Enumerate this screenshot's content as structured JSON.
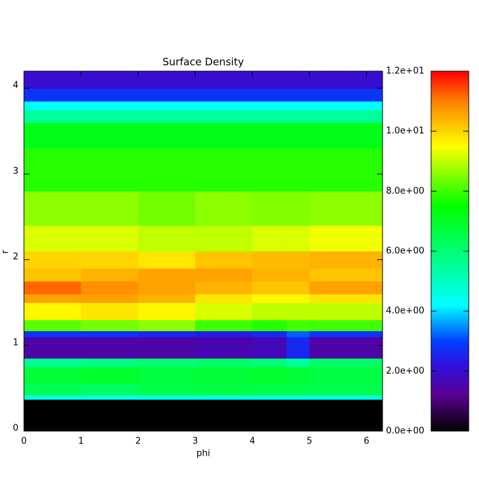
{
  "chart_data": {
    "type": "heatmap",
    "title": "Surface Density",
    "x_label": "phi",
    "y_label": "r",
    "x": [
      0,
      1,
      2,
      3,
      4,
      4.6,
      5,
      6.28
    ],
    "y": [
      0,
      0.37,
      0.42,
      0.55,
      0.75,
      0.85,
      1.1,
      1.17,
      1.3,
      1.5,
      1.6,
      1.75,
      1.9,
      2.1,
      2.4,
      2.8,
      3.3,
      3.6,
      3.75,
      3.85,
      4.0,
      4.2
    ],
    "z": [
      [
        0,
        0,
        0,
        0,
        0,
        0,
        0
      ],
      [
        4.5,
        4.5,
        4.5,
        4.5,
        4.5,
        4.5,
        4.5
      ],
      [
        6.4,
        6.2,
        6.5,
        6.6,
        6.5,
        6.5,
        6.5
      ],
      [
        6.8,
        6.9,
        6.7,
        6.8,
        6.9,
        6.8,
        6.6
      ],
      [
        5.6,
        5.8,
        6.0,
        6.2,
        6.0,
        5.5,
        6.2
      ],
      [
        1.5,
        1.5,
        1.5,
        1.6,
        1.7,
        2.6,
        1.5
      ],
      [
        2.8,
        2.8,
        2.6,
        2.4,
        2.6,
        3.2,
        2.8
      ],
      [
        8.2,
        8.4,
        8.6,
        8.0,
        7.8,
        8.0,
        8.0
      ],
      [
        9.6,
        9.8,
        9.6,
        9.2,
        9.0,
        9.0,
        9.0
      ],
      [
        10.6,
        10.6,
        10.4,
        9.8,
        9.6,
        9.6,
        9.8
      ],
      [
        11.2,
        10.8,
        10.6,
        10.4,
        10.2,
        10.2,
        10.6
      ],
      [
        10.2,
        10.4,
        10.6,
        10.6,
        10.4,
        10.4,
        10.2
      ],
      [
        10.0,
        10.0,
        9.8,
        10.2,
        10.3,
        10.3,
        10.4
      ],
      [
        9.2,
        9.2,
        9.0,
        9.0,
        9.2,
        9.2,
        9.4
      ],
      [
        8.6,
        8.6,
        8.4,
        8.6,
        8.5,
        8.5,
        8.6
      ],
      [
        7.8,
        7.8,
        7.8,
        7.8,
        7.8,
        7.8,
        7.8
      ],
      [
        7.2,
        7.2,
        7.2,
        7.2,
        7.2,
        7.2,
        7.2
      ],
      [
        5.5,
        5.5,
        5.5,
        5.5,
        5.5,
        5.5,
        5.5
      ],
      [
        4.2,
        4.2,
        4.2,
        4.2,
        4.2,
        4.2,
        4.2
      ],
      [
        2.8,
        2.8,
        2.8,
        2.8,
        2.8,
        2.8,
        2.8
      ],
      [
        2.0,
        2.0,
        2.0,
        2.0,
        2.0,
        2.0,
        2.0
      ]
    ],
    "xlim": [
      0,
      6.28
    ],
    "xticks": [
      0,
      1,
      2,
      3,
      4,
      5,
      6
    ],
    "ylim": [
      0,
      4.2
    ],
    "yticks": [
      0,
      1,
      2,
      3,
      4
    ],
    "colorbar_lim": [
      0,
      12
    ],
    "colorbar_ticks": [
      {
        "value": 0,
        "label": "0.0e+00"
      },
      {
        "value": 2,
        "label": "2.0e+00"
      },
      {
        "value": 4,
        "label": "4.0e+00"
      },
      {
        "value": 6,
        "label": "6.0e+00"
      },
      {
        "value": 8,
        "label": "8.0e+00"
      },
      {
        "value": 10,
        "label": "1.0e+01"
      },
      {
        "value": 12,
        "label": "1.2e+01"
      }
    ],
    "colorscale": [
      [
        0,
        "#000000"
      ],
      [
        1.2,
        "#5a0090"
      ],
      [
        2.2,
        "#3010e0"
      ],
      [
        3,
        "#0040ff"
      ],
      [
        4.2,
        "#00ffff"
      ],
      [
        5,
        "#00ffc0"
      ],
      [
        7.5,
        "#00ff00"
      ],
      [
        9.5,
        "#ffff00"
      ],
      [
        11,
        "#ff8000"
      ],
      [
        12,
        "#ff0000"
      ]
    ]
  }
}
